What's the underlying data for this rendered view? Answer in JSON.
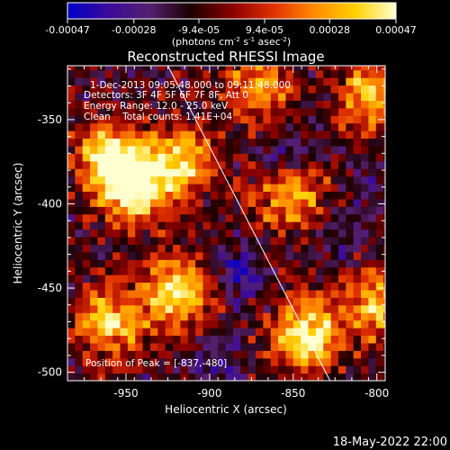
{
  "colorbar": {
    "tick_labels": [
      "-0.00047",
      "-0.00028",
      "-9.4e-05",
      "9.4e-05",
      "0.00028",
      "0.00047"
    ],
    "tick_values": [
      -0.00047,
      -0.00028,
      -9.4e-05,
      9.4e-05,
      0.00028,
      0.00047
    ],
    "range": [
      -0.00047,
      0.00047
    ],
    "unit_label": "(photons cm",
    "unit_exp1": "-2",
    "unit_mid": " s",
    "unit_exp2": "-1",
    "unit_mid2": " asec",
    "unit_exp3": "-2",
    "unit_end": ")",
    "colormap": [
      "#0000c8",
      "#3b0a9c",
      "#55206f",
      "#1a0000",
      "#8a0000",
      "#e03000",
      "#ff8a00",
      "#ffd000",
      "#ffffd0"
    ]
  },
  "chart_data": {
    "type": "heatmap",
    "title": "Reconstructed RHESSI Image",
    "xlabel": "Heliocentric X (arcsec)",
    "ylabel": "Heliocentric Y (arcsec)",
    "xlim": [
      -985,
      -795
    ],
    "ylim": [
      -505,
      -318
    ],
    "x_ticks": [
      -950,
      -900,
      -850,
      -800
    ],
    "y_ticks": [
      -500,
      -450,
      -400,
      -350
    ],
    "x_tick_labels": [
      "-950",
      "-900",
      "-850",
      "-800"
    ],
    "y_tick_labels": [
      "-500",
      "-450",
      "-400",
      "-350"
    ],
    "limb_line": [
      [
        -925,
        -318
      ],
      [
        -828,
        -505
      ]
    ],
    "peak_marker": [
      -837,
      -480
    ],
    "annotations": [
      "1-Dec-2013 09:05:48.000 to 09:11:48.000",
      "Detectors: 3F 4F 5F 6F 7F 8F, Att 0",
      "Energy Range: 12.0 - 25.0 keV",
      "Clean    Total counts: 1.41E+04"
    ],
    "peak_label": "Position of Peak = [-837,-480]",
    "bright_sources": [
      {
        "x": -945,
        "y": -390,
        "value": 0.00047
      },
      {
        "x": -960,
        "y": -370,
        "value": 0.0004
      },
      {
        "x": -915,
        "y": -375,
        "value": 0.00035
      },
      {
        "x": -920,
        "y": -452,
        "value": 0.00042
      },
      {
        "x": -960,
        "y": -470,
        "value": 0.00035
      },
      {
        "x": -842,
        "y": -478,
        "value": 0.00047
      },
      {
        "x": -800,
        "y": -460,
        "value": 0.0003
      },
      {
        "x": -852,
        "y": -395,
        "value": 0.0003
      },
      {
        "x": -803,
        "y": -335,
        "value": 0.00035
      },
      {
        "x": -870,
        "y": -330,
        "value": 0.00028
      }
    ],
    "dim_sources": [
      {
        "x": -855,
        "y": -370,
        "value": -0.00035
      },
      {
        "x": -883,
        "y": -440,
        "value": -0.0004
      },
      {
        "x": -895,
        "y": -495,
        "value": -0.0003
      },
      {
        "x": -825,
        "y": -420,
        "value": -0.00025
      },
      {
        "x": -800,
        "y": -395,
        "value": -0.0002
      }
    ]
  },
  "footer": {
    "date": "18-May-2022 22:00"
  }
}
